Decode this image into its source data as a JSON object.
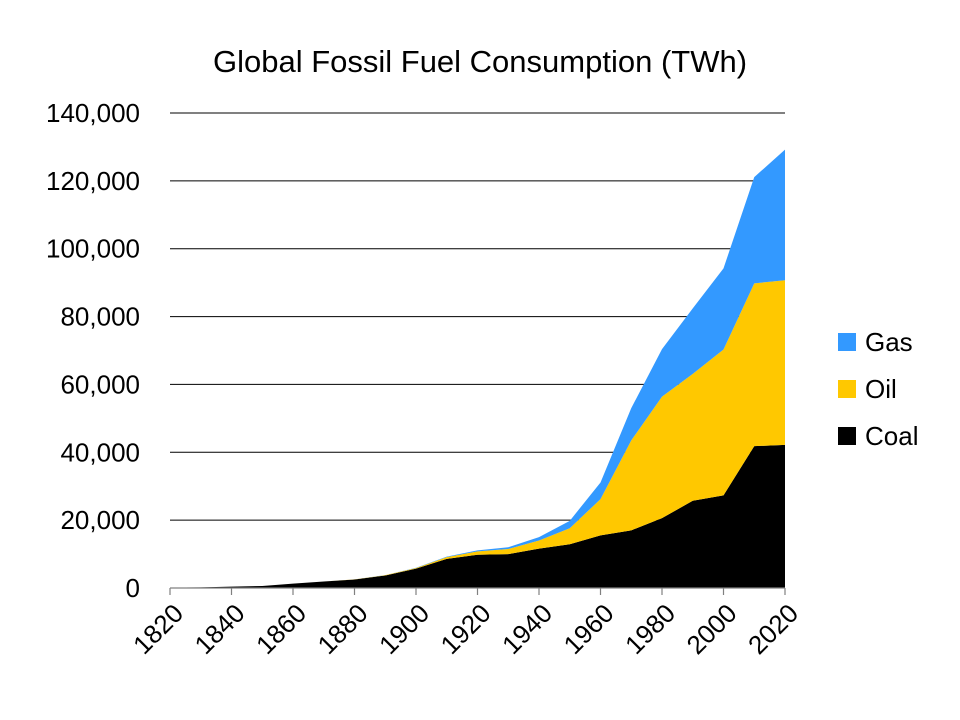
{
  "chart_data": {
    "type": "area",
    "stacked": true,
    "title": "Global Fossil Fuel Consumption (TWh)",
    "xlabel": "",
    "ylabel": "",
    "x": [
      1820,
      1830,
      1840,
      1850,
      1860,
      1870,
      1880,
      1890,
      1900,
      1910,
      1920,
      1930,
      1940,
      1950,
      1960,
      1970,
      1980,
      1990,
      2000,
      2010,
      2020
    ],
    "series": [
      {
        "name": "Coal",
        "color": "#000000",
        "values": [
          100,
          200,
          400,
          600,
          1300,
          1900,
          2500,
          3700,
          5700,
          8600,
          9800,
          10000,
          11600,
          12900,
          15500,
          17000,
          20600,
          25700,
          27300,
          41800,
          42200
        ]
      },
      {
        "name": "Oil",
        "color": "#ffc800",
        "values": [
          0,
          0,
          0,
          0,
          0,
          10,
          30,
          80,
          200,
          500,
          1000,
          1500,
          2400,
          4700,
          10700,
          26500,
          35800,
          37400,
          43000,
          48000,
          48500
        ]
      },
      {
        "name": "Gas",
        "color": "#3399ff",
        "values": [
          0,
          0,
          0,
          0,
          0,
          0,
          10,
          30,
          60,
          150,
          300,
          500,
          1000,
          2200,
          4900,
          9500,
          14000,
          19300,
          23900,
          31300,
          38500
        ]
      }
    ],
    "x_ticks": [
      "1820",
      "1840",
      "1860",
      "1880",
      "1900",
      "1920",
      "1940",
      "1960",
      "1980",
      "2000",
      "2020"
    ],
    "y_ticks": [
      "0",
      "20,000",
      "40,000",
      "60,000",
      "80,000",
      "100,000",
      "120,000",
      "140,000"
    ],
    "xlim": [
      1820,
      2020
    ],
    "ylim": [
      0,
      140000
    ],
    "grid": "horizontal",
    "legend": {
      "placement": "right",
      "entries": [
        "Gas",
        "Oil",
        "Coal"
      ]
    }
  }
}
